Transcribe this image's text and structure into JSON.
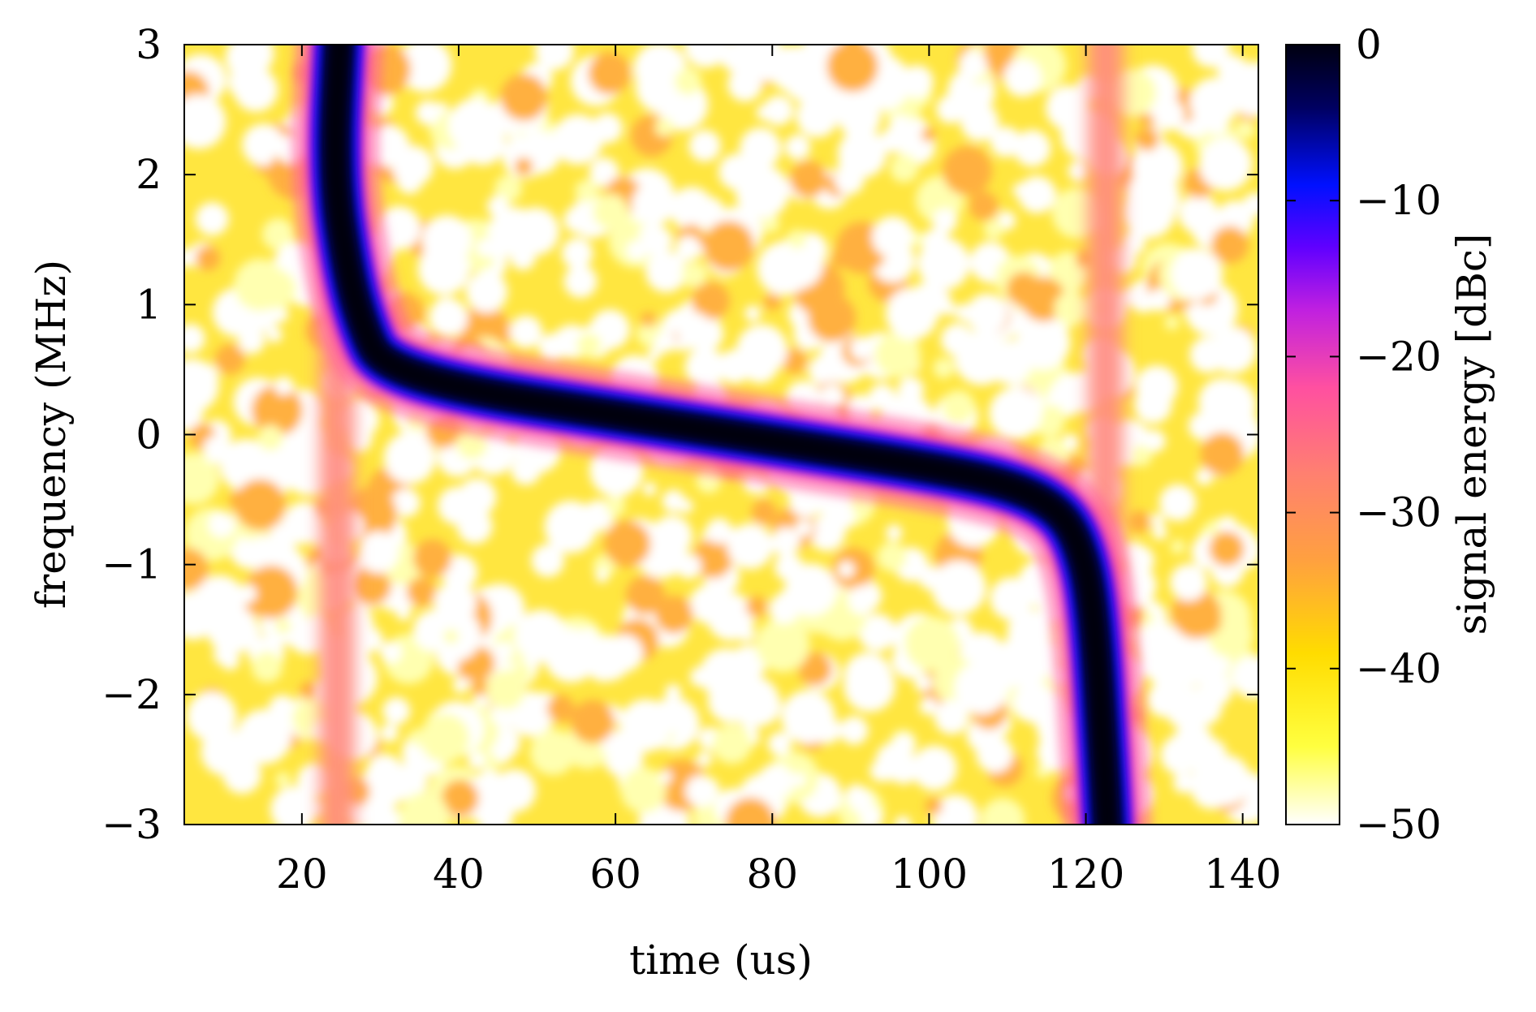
{
  "chart_data": {
    "type": "heatmap",
    "title": "",
    "xlabel": "time (us)",
    "ylabel": "frequency (MHz)",
    "colorbar_label": "signal energy [dBc]",
    "xlim": [
      5,
      142
    ],
    "ylim": [
      -3,
      3
    ],
    "clim": [
      -50,
      0
    ],
    "x_ticks": [
      20,
      40,
      60,
      80,
      100,
      120,
      140
    ],
    "y_ticks": [
      -3,
      -2,
      -1,
      0,
      1,
      2,
      3
    ],
    "colorbar_ticks": [
      0,
      -10,
      -20,
      -30,
      -40,
      -50
    ],
    "x_tick_labels": [
      "20",
      "40",
      "60",
      "80",
      "100",
      "120",
      "140"
    ],
    "y_tick_labels": [
      "−3",
      "−2",
      "−1",
      "0",
      "1",
      "2",
      "3"
    ],
    "colorbar_tick_labels": [
      "0",
      "−10",
      "−20",
      "−30",
      "−40",
      "−50"
    ],
    "colormap": [
      "#ffffff",
      "#ffff00",
      "#ffa030",
      "#ff50a0",
      "#8000ff",
      "#0000ff",
      "#000000"
    ],
    "chirp_trace": {
      "description_points_time_us": [
        24,
        26,
        28,
        30,
        40,
        60,
        80,
        100,
        110,
        116,
        119,
        121,
        122.5
      ],
      "frequency_mhz": [
        2.0,
        1.2,
        0.8,
        0.55,
        0.35,
        0.15,
        -0.05,
        -0.25,
        -0.38,
        -0.55,
        -0.8,
        -1.3,
        -2.7
      ],
      "peak_dbc": 0
    },
    "vertical_bands_time_us": [
      24.5,
      122.5
    ],
    "band_level_dbc": -30,
    "background_level_dbc": -45
  }
}
